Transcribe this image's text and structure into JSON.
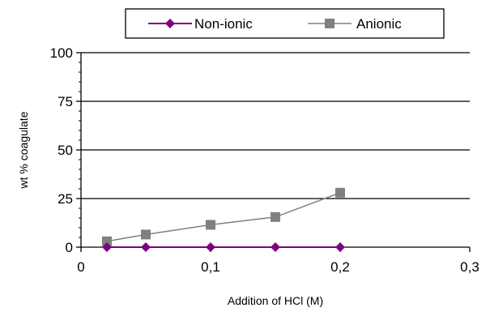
{
  "chart_data": {
    "type": "line",
    "title": "",
    "xlabel": "Addition of HCl (M)",
    "ylabel": "wt % coagulate",
    "xlim": [
      0,
      0.3
    ],
    "ylim": [
      0,
      100
    ],
    "x_ticks": [
      0,
      0.1,
      0.2,
      0.3
    ],
    "x_tick_labels": [
      "0",
      "0,1",
      "0,2",
      "0,3"
    ],
    "y_ticks": [
      0,
      25,
      50,
      75,
      100
    ],
    "y_tick_labels": [
      "0",
      "25",
      "50",
      "75",
      "100"
    ],
    "y_minor_step": 5,
    "grid": "horizontal major lines",
    "legend_position": "top-center",
    "series": [
      {
        "name": "Non-ionic",
        "marker": "diamond",
        "color": "#800080",
        "x": [
          0.02,
          0.05,
          0.1,
          0.15,
          0.2
        ],
        "y": [
          0,
          0,
          0,
          0,
          0
        ]
      },
      {
        "name": "Anionic",
        "marker": "square",
        "color": "#808080",
        "x": [
          0.02,
          0.05,
          0.1,
          0.15,
          0.2
        ],
        "y": [
          3,
          6.5,
          11.5,
          15.5,
          28
        ]
      }
    ]
  }
}
